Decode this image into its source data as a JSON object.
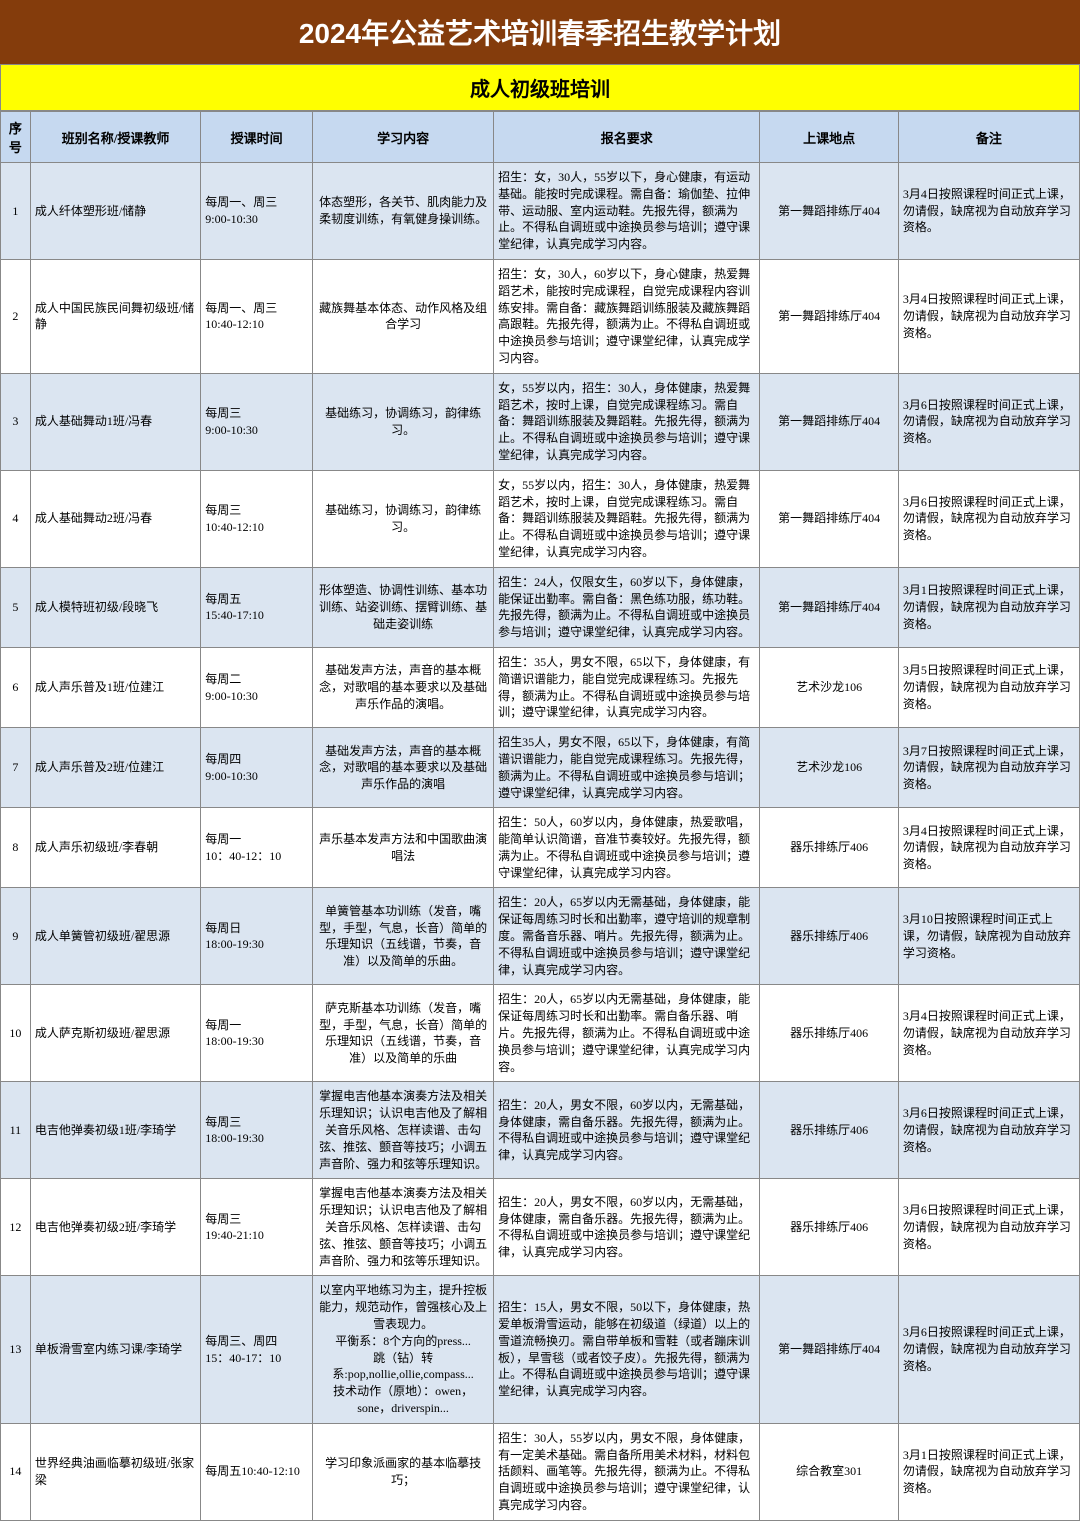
{
  "title": "2024年公益艺术培训春季招生教学计划",
  "subtitle": "成人初级班培训",
  "colors": {
    "title_bg": "#843c0c",
    "title_fg": "#ffffff",
    "subtitle_bg": "#ffff00",
    "header_bg": "#c6d9f0",
    "row_odd_bg": "#dbe5f1",
    "row_even_bg": "#ffffff",
    "border": "#888888"
  },
  "columns": [
    "序号",
    "班别名称/授课教师",
    "授课时间",
    "学习内容",
    "报名要求",
    "上课地点",
    "备注"
  ],
  "rows": [
    {
      "idx": "1",
      "name": "成人纤体塑形班/储静",
      "time": "每周一、周三\n9:00-10:30",
      "content": "体态塑形，各关节、肌肉能力及柔韧度训练，有氧健身操训练。",
      "req": "招生：女，30人，55岁以下，身心健康，有运动基础。能按时完成课程。需自备：瑜伽垫、拉伸带、运动服、室内运动鞋。先报先得，额满为止。不得私自调班或中途换员参与培训；遵守课堂纪律，认真完成学习内容。",
      "loc": "第一舞蹈排练厅404",
      "note": "3月4日按照课程时间正式上课，勿请假，缺席视为自动放弃学习资格。"
    },
    {
      "idx": "2",
      "name": "成人中国民族民间舞初级班/储静",
      "time": "每周一、周三\n10:40-12:10",
      "content": "藏族舞基本体态、动作风格及组合学习",
      "req": "招生：女，30人，60岁以下，身心健康，热爱舞蹈艺术，能按时完成课程，自觉完成课程内容训练安排。需自备：藏族舞蹈训练服装及藏族舞蹈高跟鞋。先报先得，额满为止。不得私自调班或中途换员参与培训；遵守课堂纪律，认真完成学习内容。",
      "loc": "第一舞蹈排练厅404",
      "note": "3月4日按照课程时间正式上课，勿请假，缺席视为自动放弃学习资格。"
    },
    {
      "idx": "3",
      "name": "成人基础舞动1班/冯春",
      "time": "每周三\n9:00-10:30",
      "content": "基础练习，协调练习，韵律练习。",
      "req": "女，55岁以内，招生：30人，身体健康，热爱舞蹈艺术，按时上课，自觉完成课程练习。需自备：舞蹈训练服装及舞蹈鞋。先报先得，额满为止。不得私自调班或中途换员参与培训；遵守课堂纪律，认真完成学习内容。",
      "loc": "第一舞蹈排练厅404",
      "note": "3月6日按照课程时间正式上课，勿请假，缺席视为自动放弃学习资格。"
    },
    {
      "idx": "4",
      "name": "成人基础舞动2班/冯春",
      "time": "每周三\n10:40-12:10",
      "content": "基础练习，协调练习，韵律练习。",
      "req": "女，55岁以内，招生：30人，身体健康，热爱舞蹈艺术，按时上课，自觉完成课程练习。需自备：舞蹈训练服装及舞蹈鞋。先报先得，额满为止。不得私自调班或中途换员参与培训；遵守课堂纪律，认真完成学习内容。",
      "loc": "第一舞蹈排练厅404",
      "note": "3月6日按照课程时间正式上课，勿请假，缺席视为自动放弃学习资格。"
    },
    {
      "idx": "5",
      "name": "成人模特班初级/段晓飞",
      "time": "每周五\n15:40-17:10",
      "content": "形体塑造、协调性训练、基本功训练、站姿训练、摆臂训练、基础走姿训练",
      "req": "招生：24人，仅限女生，60岁以下，身体健康，能保证出勤率。需自备：黑色练功服，练功鞋。先报先得，额满为止。不得私自调班或中途换员参与培训；遵守课堂纪律，认真完成学习内容。",
      "loc": "第一舞蹈排练厅404",
      "note": "3月1日按照课程时间正式上课，勿请假，缺席视为自动放弃学习资格。"
    },
    {
      "idx": "6",
      "name": "成人声乐普及1班/位建江",
      "time": "每周二\n9:00-10:30",
      "content": "基础发声方法，声音的基本概念，对歌唱的基本要求以及基础声乐作品的演唱。",
      "req": "招生：35人，男女不限，65以下，身体健康，有简谱识谱能力，能自觉完成课程练习。先报先得，额满为止。不得私自调班或中途换员参与培训；遵守课堂纪律，认真完成学习内容。",
      "loc": "艺术沙龙106",
      "note": "3月5日按照课程时间正式上课，勿请假，缺席视为自动放弃学习资格。"
    },
    {
      "idx": "7",
      "name": "成人声乐普及2班/位建江",
      "time": "每周四\n9:00-10:30",
      "content": "基础发声方法，声音的基本概念，对歌唱的基本要求以及基础声乐作品的演唱",
      "req": "招生35人，男女不限，65以下，身体健康，有简谱识谱能力，能自觉完成课程练习。先报先得，额满为止。不得私自调班或中途换员参与培训；遵守课堂纪律，认真完成学习内容。",
      "loc": "艺术沙龙106",
      "note": "3月7日按照课程时间正式上课，勿请假，缺席视为自动放弃学习资格。"
    },
    {
      "idx": "8",
      "name": "成人声乐初级班/李春朝",
      "time": "每周一\n10：40-12：10",
      "content": "声乐基本发声方法和中国歌曲演唱法",
      "req": "招生：50人，60岁以内，身体健康，热爱歌唱，能简单认识简谱，音准节奏较好。先报先得，额满为止。不得私自调班或中途换员参与培训；遵守课堂纪律，认真完成学习内容。",
      "loc": "器乐排练厅406",
      "note": "3月4日按照课程时间正式上课，勿请假，缺席视为自动放弃学习资格。"
    },
    {
      "idx": "9",
      "name": "成人单簧管初级班/翟思源",
      "time": "每周日\n18:00-19:30",
      "content": "单簧管基本功训练（发音，嘴型，手型，气息，长音）简单的乐理知识（五线谱，节奏，音准）以及简单的乐曲。",
      "req": "招生：20人，65岁以内无需基础，身体健康，能保证每周练习时长和出勤率，遵守培训的规章制度。需备音乐器、哨片。先报先得，额满为止。不得私自调班或中途换员参与培训；遵守课堂纪律，认真完成学习内容。",
      "loc": "器乐排练厅406",
      "note": "3月10日按照课程时间正式上课，勿请假，缺席视为自动放弃学习资格。"
    },
    {
      "idx": "10",
      "name": "成人萨克斯初级班/翟思源",
      "time": "每周一\n18:00-19:30",
      "content": "萨克斯基本功训练（发音，嘴型，手型，气息，长音）简单的乐理知识（五线谱，节奏，音准）以及简单的乐曲",
      "req": "招生：20人，65岁以内无需基础，身体健康，能保证每周练习时长和出勤率。需自备乐器、哨片。先报先得，额满为止。不得私自调班或中途换员参与培训；遵守课堂纪律，认真完成学习内容。",
      "loc": "器乐排练厅406",
      "note": "3月4日按照课程时间正式上课，勿请假，缺席视为自动放弃学习资格。"
    },
    {
      "idx": "11",
      "name": "电吉他弹奏初级1班/李琦学",
      "time": "每周三\n18:00-19:30",
      "content": "掌握电吉他基本演奏方法及相关乐理知识；认识电吉他及了解相关音乐风格、怎样读谱、击勾弦、推弦、颤音等技巧；小调五声音阶、强力和弦等乐理知识。",
      "req": "招生：20人，男女不限，60岁以内，无需基础，身体健康，需自备乐器。先报先得，额满为止。不得私自调班或中途换员参与培训；遵守课堂纪律，认真完成学习内容。",
      "loc": "器乐排练厅406",
      "note": "3月6日按照课程时间正式上课，勿请假，缺席视为自动放弃学习资格。"
    },
    {
      "idx": "12",
      "name": "电吉他弹奏初级2班/李琦学",
      "time": "每周三\n19:40-21:10",
      "content": "掌握电吉他基本演奏方法及相关乐理知识；认识电吉他及了解相关音乐风格、怎样读谱、击勾弦、推弦、颤音等技巧；小调五声音阶、强力和弦等乐理知识。",
      "req": "招生：20人，男女不限，60岁以内，无需基础，身体健康，需自备乐器。先报先得，额满为止。不得私自调班或中途换员参与培训；遵守课堂纪律，认真完成学习内容。",
      "loc": "器乐排练厅406",
      "note": "3月6日按照课程时间正式上课，勿请假，缺席视为自动放弃学习资格。"
    },
    {
      "idx": "13",
      "name": "单板滑雪室内练习课/李琦学",
      "time": "每周三、周四\n15：40-17：10",
      "content": "以室内平地练习为主，提升控板能力，规范动作，曾强核心及上雪表现力。\n平衡系：8个方向的press...\n跳（钻）转系:pop,nollie,ollie,compass...\n技术动作（原地）：owen，sone，driverspin...",
      "req": "招生：15人，男女不限，50以下，身体健康，热爱单板滑雪运动，能够在初级道（绿道）以上的雪道流畅换刃。需自带单板和雪鞋（或者蹦床训板），旱雪毯（或者饺子皮）。先报先得，额满为止。不得私自调班或中途换员参与培训；遵守课堂纪律，认真完成学习内容。",
      "loc": "第一舞蹈排练厅404",
      "note": "3月6日按照课程时间正式上课，勿请假，缺席视为自动放弃学习资格。"
    },
    {
      "idx": "14",
      "name": "世界经典油画临摹初级班/张家梁",
      "time": "每周五10:40-12:10",
      "content": "学习印象派画家的基本临摹技巧；",
      "req": "招生：30人，55岁以内，男女不限，身体健康，有一定美术基础。需自备所用美术材料，材料包括颜料、画笔等。先报先得，额满为止。不得私自调班或中途换员参与培训；遵守课堂纪律，认真完成学习内容。",
      "loc": "综合教室301",
      "note": "3月1日按照课程时间正式上课，勿请假，缺席视为自动放弃学习资格。"
    }
  ]
}
